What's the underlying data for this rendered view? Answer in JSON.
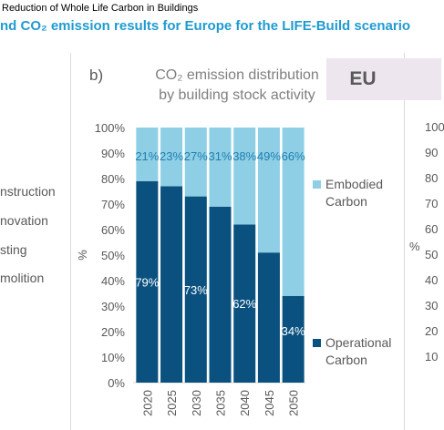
{
  "header": {
    "running_title": "Reduction of Whole Life Carbon in Buildings",
    "figure_title": "nd CO₂ emission results for Europe for the LIFE-Build scenario"
  },
  "left_panel": {
    "labels": [
      "nstruction",
      "novation",
      "sting",
      "molition"
    ]
  },
  "panel": {
    "letter": "b)",
    "region_badge": "EU"
  },
  "right_panel": {
    "tick_labels": [
      "100",
      "90",
      "80",
      "70",
      "60",
      "50",
      "40",
      "30",
      "20",
      "10"
    ],
    "axis_label": "%"
  },
  "colors": {
    "embodied": "#8ecfe6",
    "operational": "#0a517f",
    "label_on_dark": "#ffffff",
    "label_on_light": "#1f7fae",
    "axis_text": "#595959",
    "title_blue": "#1f9bd1"
  },
  "chart_data": {
    "type": "bar",
    "stacked": true,
    "title_line1": "CO₂ emission distribution",
    "title_line2": "by building stock activity",
    "categories": [
      "2020",
      "2025",
      "2030",
      "2035",
      "2040",
      "2045",
      "2050"
    ],
    "ylabel": "%",
    "ylim": [
      0,
      100
    ],
    "ytick_labels": [
      "0%",
      "10%",
      "20%",
      "30%",
      "40%",
      "50%",
      "60%",
      "70%",
      "80%",
      "90%",
      "100%"
    ],
    "series": [
      {
        "name": "Operational Carbon",
        "legend_line1": "Operational",
        "legend_line2": "Carbon",
        "values": [
          79,
          77,
          73,
          69,
          62,
          51,
          34
        ],
        "labels": [
          "79%",
          "",
          "73%",
          "",
          "62%",
          "",
          "34%"
        ]
      },
      {
        "name": "Embodied Carbon",
        "legend_line1": "Embodied",
        "legend_line2": "Carbon",
        "values": [
          21,
          23,
          27,
          31,
          38,
          49,
          66
        ],
        "labels": [
          "21%",
          "23%",
          "27%",
          "31%",
          "38%",
          "49%",
          "66%"
        ]
      }
    ],
    "legend_placement": "right"
  }
}
